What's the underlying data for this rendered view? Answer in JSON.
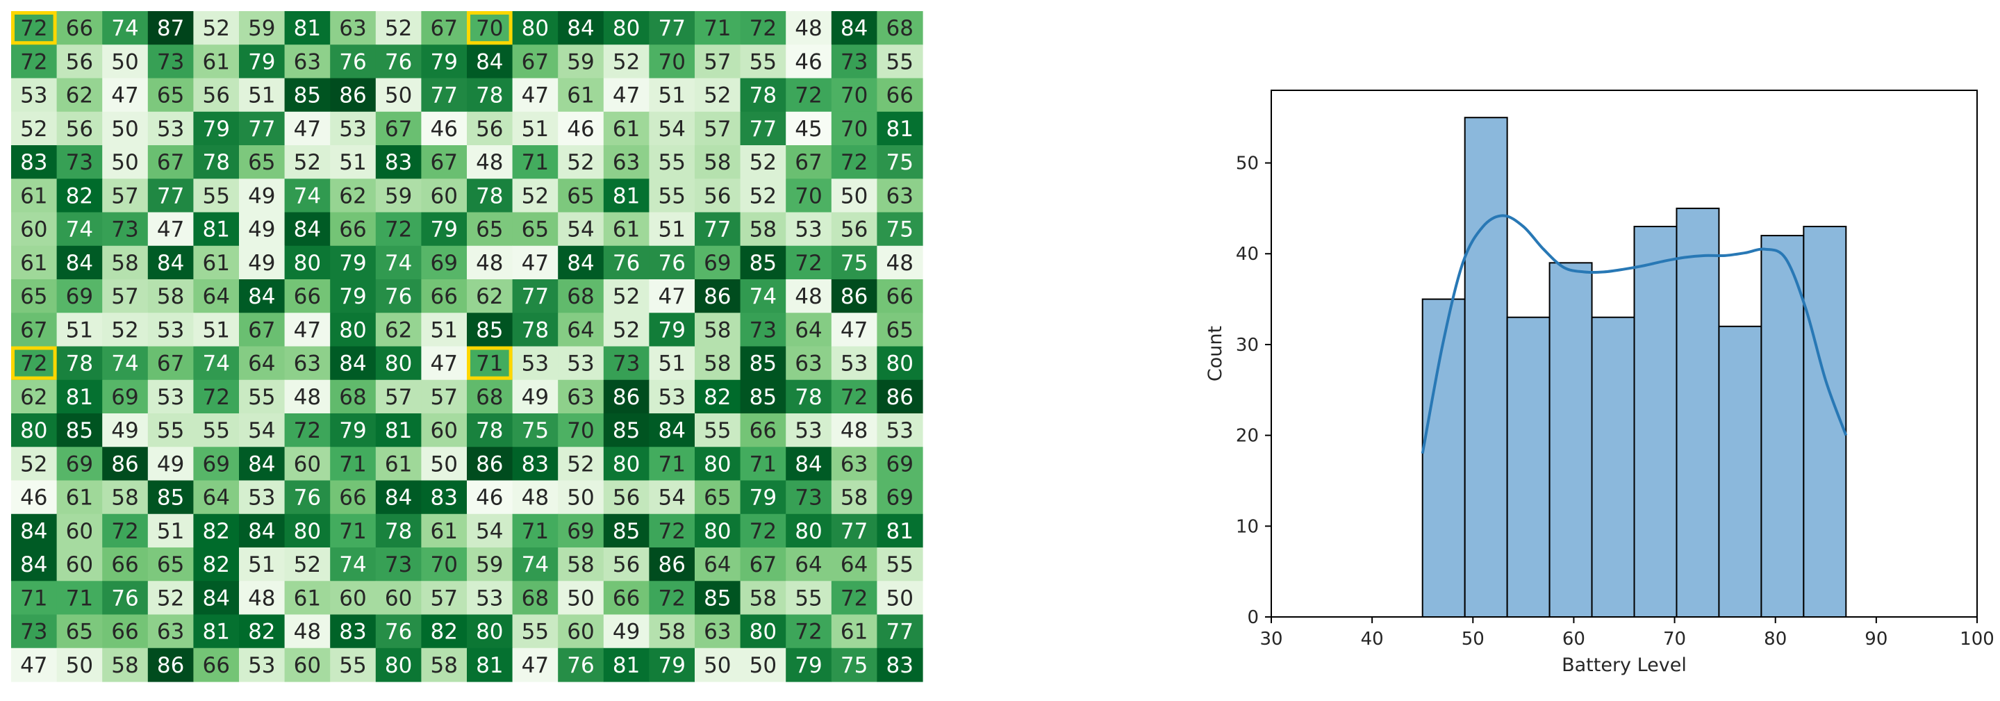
{
  "chart_data": [
    {
      "type": "heatmap",
      "colormap": "Greens",
      "value_range": [
        45,
        87
      ],
      "highlight_color": "#FFD700",
      "highlight_cells": [
        [
          0,
          0
        ],
        [
          0,
          10
        ],
        [
          10,
          0
        ],
        [
          10,
          10
        ]
      ],
      "values": [
        [
          72,
          66,
          74,
          87,
          52,
          59,
          81,
          63,
          52,
          67,
          70,
          80,
          84,
          80,
          77,
          71,
          72,
          48,
          84,
          68
        ],
        [
          72,
          56,
          50,
          73,
          61,
          79,
          63,
          76,
          76,
          79,
          84,
          67,
          59,
          52,
          70,
          57,
          55,
          46,
          73,
          55
        ],
        [
          53,
          62,
          47,
          65,
          56,
          51,
          85,
          86,
          50,
          77,
          78,
          47,
          61,
          47,
          51,
          52,
          78,
          72,
          70,
          66
        ],
        [
          52,
          56,
          50,
          53,
          79,
          77,
          47,
          53,
          67,
          46,
          56,
          51,
          46,
          61,
          54,
          57,
          77,
          45,
          70,
          81
        ],
        [
          83,
          73,
          50,
          67,
          78,
          65,
          52,
          51,
          83,
          67,
          48,
          71,
          52,
          63,
          55,
          58,
          52,
          67,
          72,
          75
        ],
        [
          61,
          82,
          57,
          77,
          55,
          49,
          74,
          62,
          59,
          60,
          78,
          52,
          65,
          81,
          55,
          56,
          52,
          70,
          50,
          63
        ],
        [
          60,
          74,
          73,
          47,
          81,
          49,
          84,
          66,
          72,
          79,
          65,
          65,
          54,
          61,
          51,
          77,
          58,
          53,
          56,
          75
        ],
        [
          61,
          84,
          58,
          84,
          61,
          49,
          80,
          79,
          74,
          69,
          48,
          47,
          84,
          76,
          76,
          69,
          85,
          72,
          75,
          48
        ],
        [
          65,
          69,
          57,
          58,
          64,
          84,
          66,
          79,
          76,
          66,
          62,
          77,
          68,
          52,
          47,
          86,
          74,
          48,
          86,
          66
        ],
        [
          67,
          51,
          52,
          53,
          51,
          67,
          47,
          80,
          62,
          51,
          85,
          78,
          64,
          52,
          79,
          58,
          73,
          64,
          47,
          65
        ],
        [
          72,
          78,
          74,
          67,
          74,
          64,
          63,
          84,
          80,
          47,
          71,
          53,
          53,
          73,
          51,
          58,
          85,
          63,
          53,
          80
        ],
        [
          62,
          81,
          69,
          53,
          72,
          55,
          48,
          68,
          57,
          57,
          68,
          49,
          63,
          86,
          53,
          82,
          85,
          78,
          72,
          86
        ],
        [
          80,
          85,
          49,
          55,
          55,
          54,
          72,
          79,
          81,
          60,
          78,
          75,
          70,
          85,
          84,
          55,
          66,
          53,
          48,
          53
        ],
        [
          52,
          69,
          86,
          49,
          69,
          84,
          60,
          71,
          61,
          50,
          86,
          83,
          52,
          80,
          71,
          80,
          71,
          84,
          63,
          69
        ],
        [
          46,
          61,
          58,
          85,
          64,
          53,
          76,
          66,
          84,
          83,
          46,
          48,
          50,
          56,
          54,
          65,
          79,
          73,
          58,
          69
        ],
        [
          84,
          60,
          72,
          51,
          82,
          84,
          80,
          71,
          78,
          61,
          54,
          71,
          69,
          85,
          72,
          80,
          72,
          80,
          77,
          81
        ],
        [
          84,
          60,
          66,
          65,
          82,
          51,
          52,
          74,
          73,
          70,
          59,
          74,
          58,
          56,
          86,
          64,
          67,
          64,
          64,
          55
        ],
        [
          71,
          71,
          76,
          52,
          84,
          48,
          61,
          60,
          60,
          57,
          53,
          68,
          50,
          66,
          72,
          85,
          58,
          55,
          72,
          50
        ],
        [
          73,
          65,
          66,
          63,
          81,
          82,
          48,
          83,
          76,
          82,
          80,
          55,
          60,
          49,
          58,
          63,
          80,
          72,
          61,
          77
        ],
        [
          47,
          50,
          58,
          86,
          66,
          53,
          60,
          55,
          80,
          58,
          81,
          47,
          76,
          81,
          79,
          50,
          50,
          79,
          75,
          83
        ]
      ]
    },
    {
      "type": "bar",
      "subtype": "histogram",
      "bar_color": "#8BB8DC",
      "kde_color": "#2878B5",
      "bin_edges": [
        45,
        49.2,
        53.4,
        57.6,
        61.8,
        66,
        70.2,
        74.4,
        78.6,
        82.8,
        87
      ],
      "counts": [
        35,
        55,
        33,
        39,
        33,
        43,
        45,
        32,
        42,
        43
      ],
      "kde": {
        "x": [
          45,
          47,
          49,
          51,
          53,
          55,
          57,
          59,
          61,
          63,
          65,
          67,
          69,
          71,
          73,
          75,
          77,
          79,
          81,
          83,
          85,
          87
        ],
        "y": [
          18,
          30,
          39,
          43,
          44.2,
          43,
          40.5,
          38.5,
          38,
          38,
          38.3,
          38.7,
          39.2,
          39.6,
          39.8,
          39.8,
          40.1,
          40.5,
          39.5,
          34,
          26,
          20
        ]
      },
      "xlabel": "Battery Level",
      "ylabel": "Count",
      "xlim": [
        30,
        100
      ],
      "ylim": [
        0,
        58
      ],
      "xticks": [
        30,
        40,
        50,
        60,
        70,
        80,
        90,
        100
      ],
      "yticks": [
        0,
        10,
        20,
        30,
        40,
        50
      ],
      "grid": false
    }
  ]
}
